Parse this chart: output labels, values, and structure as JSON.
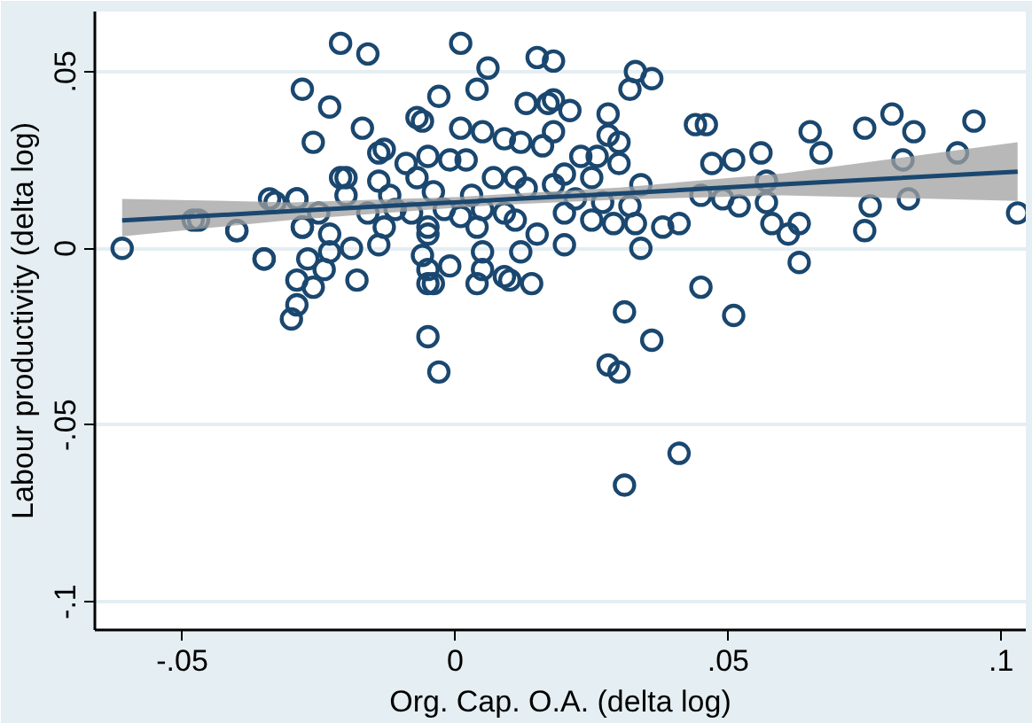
{
  "chart_data": {
    "type": "scatter",
    "xlabel": "Org. Cap. O.A. (delta log)",
    "ylabel": "Labour productivity (delta log)",
    "xlim": [
      -0.066,
      0.1045
    ],
    "ylim": [
      -0.108,
      0.067
    ],
    "xticks": [
      {
        "value": -0.05,
        "label": "-.05"
      },
      0,
      {
        "value": 0.05,
        "label": ".05"
      },
      {
        "value": 0.1,
        "label": ".1"
      }
    ],
    "yticks": [
      {
        "value": -0.1,
        "label": "-.1"
      },
      {
        "value": -0.05,
        "label": "-.05"
      },
      0,
      {
        "value": 0.05,
        "label": ".05"
      }
    ],
    "grid": "y",
    "series": [
      {
        "color": "#1a476f",
        "marker": "circle",
        "x": [
          -0.061,
          -0.048,
          -0.04,
          -0.035,
          -0.033,
          -0.029,
          -0.028,
          -0.028,
          -0.023,
          -0.021,
          -0.016,
          -0.017,
          -0.026,
          -0.021,
          -0.02,
          -0.02,
          -0.034,
          -0.029,
          -0.047,
          -0.04,
          -0.035,
          -0.028,
          -0.025,
          -0.023,
          -0.019,
          -0.018,
          -0.027,
          -0.029,
          -0.026,
          -0.029,
          -0.03,
          -0.024,
          -0.023,
          -0.014,
          -0.014,
          -0.013,
          -0.014,
          -0.016,
          0.001,
          0.006,
          0.015,
          0.018,
          0.004,
          -0.003,
          0.013,
          0.017,
          0.018,
          0.021,
          0.028,
          0.033,
          0.032,
          -0.007,
          -0.006,
          0.001,
          0.005,
          0.018,
          0.028,
          0.03,
          0.009,
          0.012,
          0.016,
          -0.005,
          -0.001,
          0.002,
          0.026,
          0.023,
          0.03,
          -0.009,
          -0.007,
          0.007,
          0.011,
          0.02,
          0.025,
          0.034,
          -0.012,
          -0.004,
          0.003,
          0.013,
          0.018,
          0.022,
          0.027,
          0.032,
          -0.011,
          -0.008,
          -0.002,
          0.001,
          0.005,
          0.009,
          0.011,
          0.02,
          0.025,
          0.029,
          -0.013,
          -0.005,
          0.004,
          0.015,
          0.033,
          -0.005,
          0.012,
          0.02,
          0.034,
          -0.006,
          -0.001,
          0.005,
          0.005,
          -0.005,
          -0.005,
          -0.004,
          0.009,
          0.01,
          0.014,
          0.004,
          -0.005,
          0.031,
          -0.003,
          0.036,
          0.028,
          0.03,
          0.045,
          0.051,
          0.041,
          0.031,
          0.036,
          0.044,
          0.046,
          0.047,
          0.051,
          0.056,
          0.065,
          0.067,
          0.075,
          0.08,
          0.084,
          0.095,
          0.092,
          0.082,
          0.083,
          0.076,
          0.075,
          0.103,
          0.057,
          0.057,
          0.045,
          0.049,
          0.052,
          0.058,
          0.061,
          0.063,
          0.063,
          0.038,
          0.041
        ],
        "values": [
          0.0,
          0.008,
          0.005,
          -0.003,
          0.013,
          0.014,
          0.045,
          0.006,
          0.04,
          0.058,
          0.055,
          0.034,
          0.03,
          0.02,
          0.02,
          0.015,
          0.014,
          0.014,
          0.008,
          0.005,
          -0.003,
          0.006,
          0.01,
          0.004,
          0.0,
          -0.009,
          -0.003,
          -0.009,
          -0.011,
          -0.016,
          -0.02,
          -0.006,
          -0.001,
          0.001,
          0.027,
          0.028,
          0.019,
          0.01,
          0.058,
          0.051,
          0.054,
          0.053,
          0.045,
          0.043,
          0.041,
          0.041,
          0.042,
          0.039,
          0.038,
          0.05,
          0.045,
          0.037,
          0.036,
          0.034,
          0.033,
          0.033,
          0.032,
          0.03,
          0.031,
          0.03,
          0.029,
          0.026,
          0.025,
          0.025,
          0.026,
          0.026,
          0.024,
          0.024,
          0.02,
          0.02,
          0.02,
          0.021,
          0.02,
          0.018,
          0.015,
          0.016,
          0.015,
          0.017,
          0.018,
          0.014,
          0.013,
          0.012,
          0.011,
          0.01,
          0.011,
          0.009,
          0.011,
          0.01,
          0.008,
          0.01,
          0.008,
          0.007,
          0.006,
          0.006,
          0.006,
          0.004,
          0.007,
          0.004,
          -0.001,
          0.001,
          0.0,
          -0.002,
          -0.005,
          -0.001,
          -0.006,
          -0.006,
          -0.01,
          -0.01,
          -0.008,
          -0.009,
          -0.01,
          -0.01,
          -0.025,
          -0.018,
          -0.035,
          -0.026,
          -0.033,
          -0.035,
          -0.011,
          -0.019,
          -0.058,
          -0.067,
          0.048,
          0.035,
          0.035,
          0.024,
          0.025,
          0.027,
          0.033,
          0.027,
          0.034,
          0.038,
          0.033,
          0.036,
          0.027,
          0.025,
          0.014,
          0.012,
          0.005,
          0.01,
          0.019,
          0.013,
          0.015,
          0.014,
          0.012,
          0.007,
          0.004,
          0.007,
          -0.004,
          0.006,
          0.007
        ]
      },
      {
        "type": "line",
        "color": "#1a476f",
        "marker": "none",
        "line_style": "solid",
        "x": [
          -0.061,
          -0.03,
          0,
          0.01,
          0.03,
          0.06,
          0.103
        ],
        "values": [
          0.0079,
          0.0105,
          0.013,
          0.0139,
          0.0155,
          0.0181,
          0.0217
        ],
        "lower": [
          0.0034,
          0.008,
          0.0115,
          0.0124,
          0.0138,
          0.015,
          0.0134
        ],
        "upper": [
          0.014,
          0.013,
          0.0145,
          0.0154,
          0.0172,
          0.0212,
          0.03
        ]
      }
    ]
  }
}
